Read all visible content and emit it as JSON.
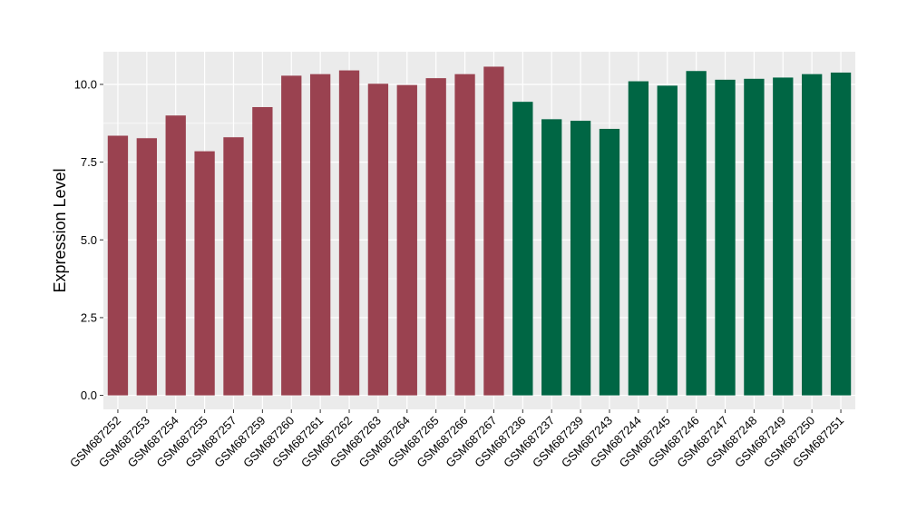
{
  "chart_data": {
    "type": "bar",
    "title": "",
    "xlabel": "",
    "ylabel": "Expression Level",
    "ylim": [
      -0.45,
      11.05
    ],
    "yticks": [
      0.0,
      2.5,
      5.0,
      7.5,
      10.0
    ],
    "ytick_labels": [
      "0.0",
      "2.5",
      "5.0",
      "7.5",
      "10.0"
    ],
    "grid": true,
    "legend": "none",
    "colors": {
      "group_a": "#9a4250",
      "group_b": "#006644",
      "panel_bg": "#ebebeb",
      "grid": "#ffffff"
    },
    "categories": [
      "GSM687252",
      "GSM687253",
      "GSM687254",
      "GSM687255",
      "GSM687257",
      "GSM687259",
      "GSM687260",
      "GSM687261",
      "GSM687262",
      "GSM687263",
      "GSM687264",
      "GSM687265",
      "GSM687266",
      "GSM687267",
      "GSM687236",
      "GSM687237",
      "GSM687239",
      "GSM687243",
      "GSM687244",
      "GSM687245",
      "GSM687246",
      "GSM687247",
      "GSM687248",
      "GSM687249",
      "GSM687250",
      "GSM687251"
    ],
    "values": [
      8.35,
      8.27,
      9.0,
      7.85,
      8.3,
      9.27,
      10.28,
      10.33,
      10.45,
      10.02,
      9.98,
      10.2,
      10.33,
      10.57,
      9.44,
      8.88,
      8.83,
      8.57,
      10.1,
      9.96,
      10.43,
      10.15,
      10.18,
      10.22,
      10.33,
      10.38
    ],
    "groups": [
      "a",
      "a",
      "a",
      "a",
      "a",
      "a",
      "a",
      "a",
      "a",
      "a",
      "a",
      "a",
      "a",
      "a",
      "b",
      "b",
      "b",
      "b",
      "b",
      "b",
      "b",
      "b",
      "b",
      "b",
      "b",
      "b"
    ]
  }
}
